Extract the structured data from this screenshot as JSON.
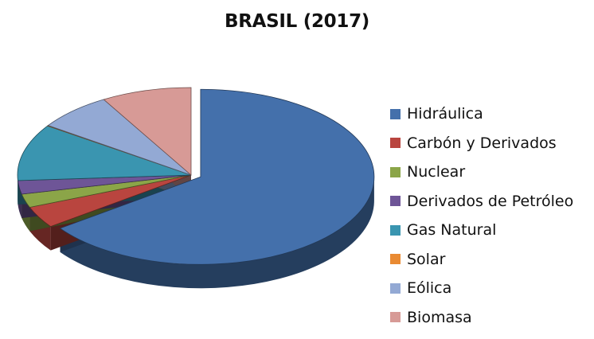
{
  "chart_data": {
    "type": "pie",
    "title": "BRASIL (2017)",
    "style": "3d-exploded",
    "legend_position": "right",
    "categories": [
      "Hidráulica",
      "Carbón y Derivados",
      "Nuclear",
      "Derivados de Petróleo",
      "Gas Natural",
      "Solar",
      "Eólica",
      "Biomasa"
    ],
    "values": [
      65.0,
      4.0,
      2.5,
      2.5,
      10.5,
      0.1,
      7.0,
      8.4
    ],
    "unit": "%",
    "colors": [
      "#4470ab",
      "#b9453f",
      "#8ba548",
      "#6e5597",
      "#3a95b0",
      "#e98a32",
      "#93a9d4",
      "#d79a96"
    ],
    "exploded": [
      "Hidráulica"
    ]
  },
  "legend": {
    "items": [
      {
        "label": "Hidráulica",
        "color": "#4470ab"
      },
      {
        "label": "Carbón y Derivados",
        "color": "#b9453f"
      },
      {
        "label": "Nuclear",
        "color": "#8ba548"
      },
      {
        "label": "Derivados de Petróleo",
        "color": "#6e5597"
      },
      {
        "label": "Gas Natural",
        "color": "#3a95b0"
      },
      {
        "label": "Solar",
        "color": "#e98a32"
      },
      {
        "label": "Eólica",
        "color": "#93a9d4"
      },
      {
        "label": "Biomasa",
        "color": "#d79a96"
      }
    ]
  }
}
